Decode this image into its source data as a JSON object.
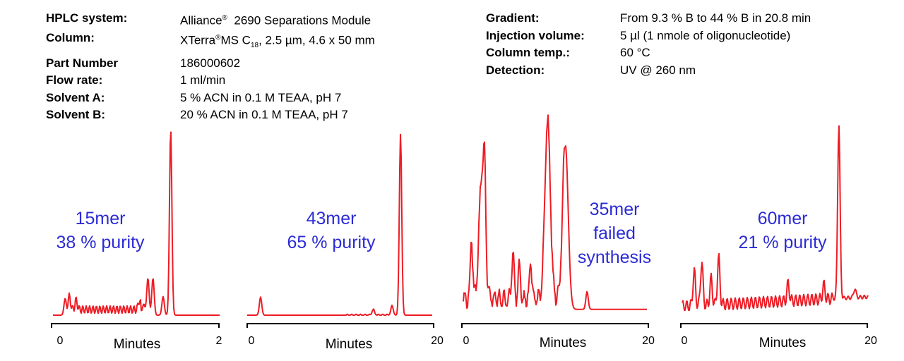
{
  "conditions_left": [
    {
      "label": "HPLC system:",
      "value_pre": "Alliance",
      "value_sup": "®",
      "value_post": "  2690 Separations Module"
    },
    {
      "label": "Column:",
      "value_pre": "XTerra",
      "value_sup": "®",
      "value_mid": "MS C",
      "value_sub": "18",
      "value_post": ", 2.5 µm, 4.6 x 50 mm"
    },
    {
      "label": "Part Number",
      "value": "186000602"
    },
    {
      "label": "Flow rate:",
      "value": "1 ml/min"
    },
    {
      "label": "Solvent A:",
      "value": "5 % ACN in 0.1 M TEAA, pH 7"
    },
    {
      "label": "Solvent B:",
      "value": "20 % ACN in 0.1 M TEAA, pH 7"
    }
  ],
  "conditions_right": [
    {
      "label": "Gradient:",
      "value": "From 9.3 % B to 44 % B in 20.8 min"
    },
    {
      "label": "Injection volume:",
      "value": "5 µl (1 nmole of oligonucleotide)"
    },
    {
      "label": "Column temp.:",
      "value": "60 °C"
    },
    {
      "label": "Detection:",
      "value": "UV @ 260 nm"
    }
  ],
  "colors": {
    "trace": "#ee1c25",
    "annotation": "#2b2bd6",
    "axis": "#000000"
  },
  "chart_data": [
    {
      "type": "line",
      "xlabel": "Minutes",
      "xlim": [
        0,
        2
      ],
      "xticks": [
        "0",
        "2"
      ],
      "annotation": [
        "15mer",
        "38 % purity"
      ],
      "peaks": [
        [
          0.17,
          0.09
        ],
        [
          0.22,
          0.07
        ],
        [
          0.3,
          0.05
        ],
        [
          1.05,
          0.05
        ],
        [
          1.1,
          0.06
        ],
        [
          1.15,
          0.2
        ],
        [
          1.21,
          0.2
        ],
        [
          1.33,
          0.1
        ],
        [
          1.42,
          1.0
        ]
      ]
    },
    {
      "type": "line",
      "xlabel": "Minutes",
      "xlim": [
        0,
        20
      ],
      "xticks": [
        "0",
        "20"
      ],
      "annotation": [
        "43mer",
        "65 % purity"
      ],
      "peaks": [
        [
          1.5,
          0.1
        ],
        [
          13.5,
          0.03
        ],
        [
          15.5,
          0.05
        ],
        [
          16.4,
          1.0
        ]
      ]
    },
    {
      "type": "line",
      "xlabel": "Minutes",
      "xlim": [
        0,
        20
      ],
      "xticks": [
        "0",
        "20"
      ],
      "annotation": [
        "35mer",
        "failed",
        "synthesis"
      ],
      "peaks": [
        [
          1.1,
          0.33
        ],
        [
          2.2,
          0.7
        ],
        [
          2.5,
          0.4
        ],
        [
          5.5,
          0.25
        ],
        [
          6.2,
          0.2
        ],
        [
          7.4,
          0.2
        ],
        [
          9.2,
          1.0
        ],
        [
          11.1,
          0.92
        ],
        [
          13.4,
          0.1
        ]
      ]
    },
    {
      "type": "line",
      "xlabel": "Minutes",
      "xlim": [
        0,
        20
      ],
      "xticks": [
        "0",
        "20"
      ],
      "annotation": [
        "60mer",
        "21 % purity"
      ],
      "peaks": [
        [
          1.5,
          0.2
        ],
        [
          2.3,
          0.25
        ],
        [
          3.3,
          0.15
        ],
        [
          4.1,
          0.27
        ],
        [
          11.5,
          0.1
        ],
        [
          15.3,
          0.08
        ],
        [
          16.9,
          1.0
        ],
        [
          18.6,
          0.05
        ]
      ]
    }
  ]
}
